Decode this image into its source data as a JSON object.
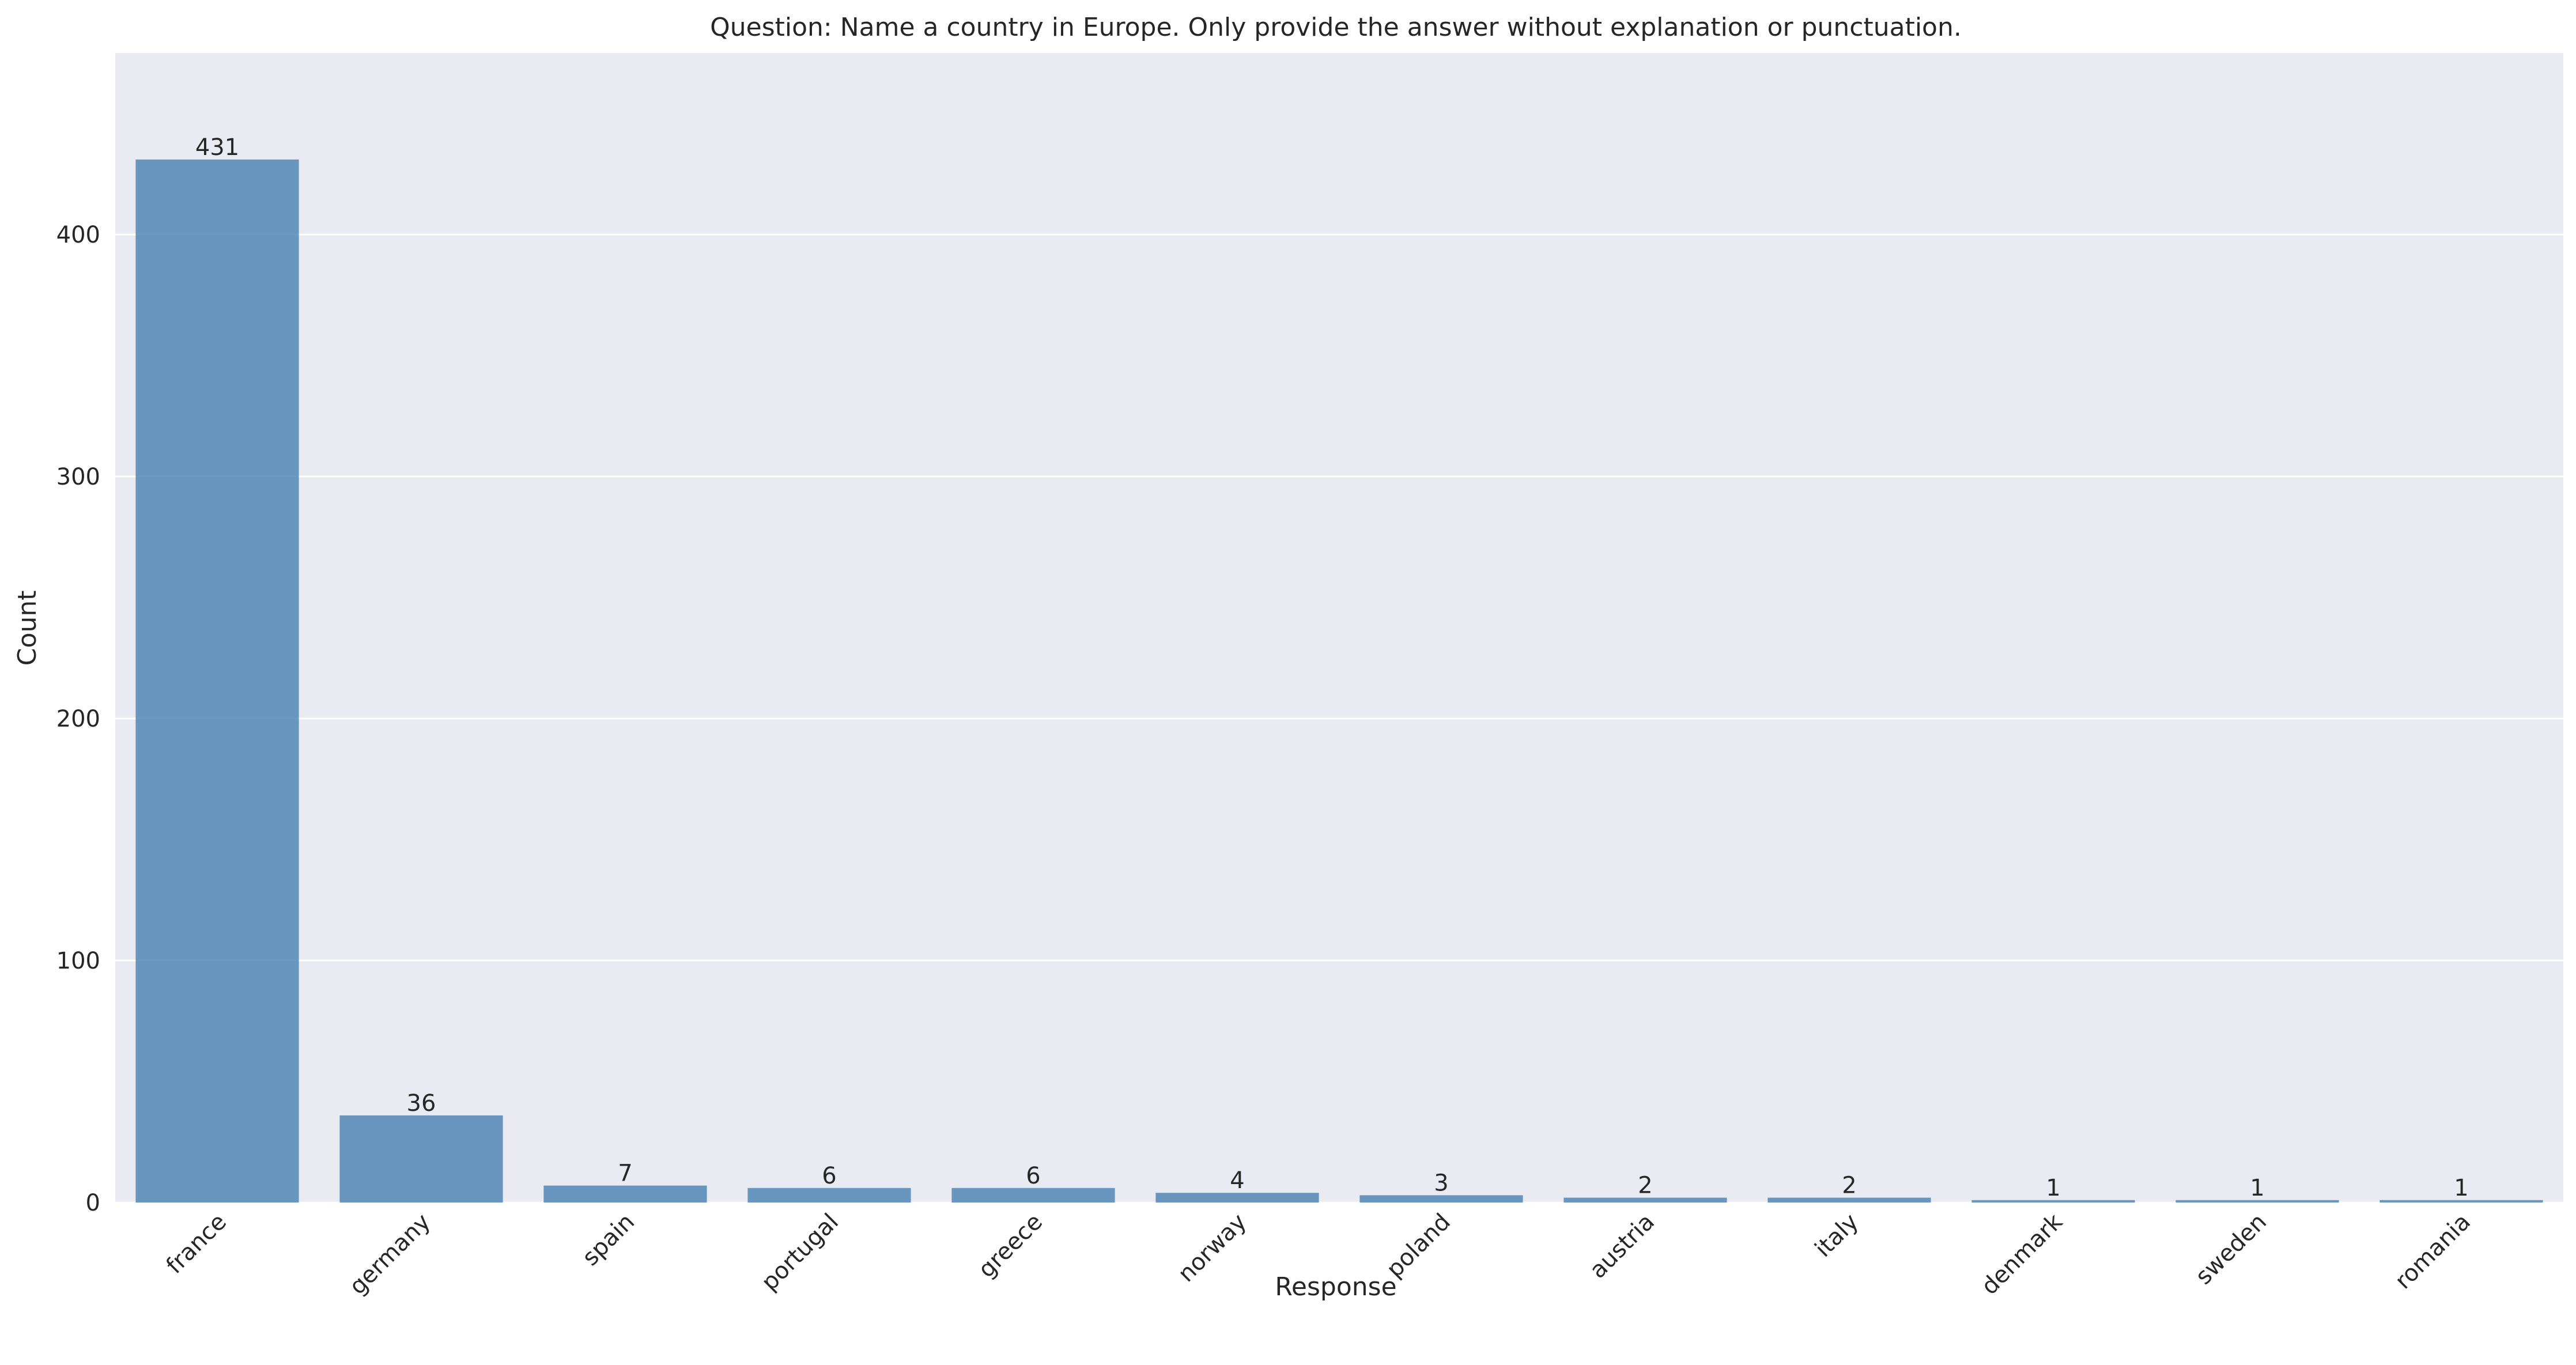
{
  "chart_data": {
    "type": "bar",
    "title": "Question: Name a country in Europe. Only provide the answer without explanation or punctuation.",
    "xlabel": "Response",
    "ylabel": "Count",
    "categories": [
      "france",
      "germany",
      "spain",
      "portugal",
      "greece",
      "norway",
      "poland",
      "austria",
      "italy",
      "denmark",
      "sweden",
      "romania"
    ],
    "values": [
      431,
      36,
      7,
      6,
      6,
      4,
      3,
      2,
      2,
      1,
      1,
      1
    ],
    "data_labels": [
      "431",
      "36",
      "7",
      "6",
      "6",
      "4",
      "3",
      "2",
      "2",
      "1",
      "1",
      "1"
    ],
    "ylim": [
      0,
      475
    ],
    "yticks": [
      0,
      100,
      200,
      300,
      400
    ],
    "grid": true,
    "colors": {
      "bar": "#5b8db8",
      "plot_background": "#eaeaf2",
      "grid": "#ffffff"
    }
  }
}
